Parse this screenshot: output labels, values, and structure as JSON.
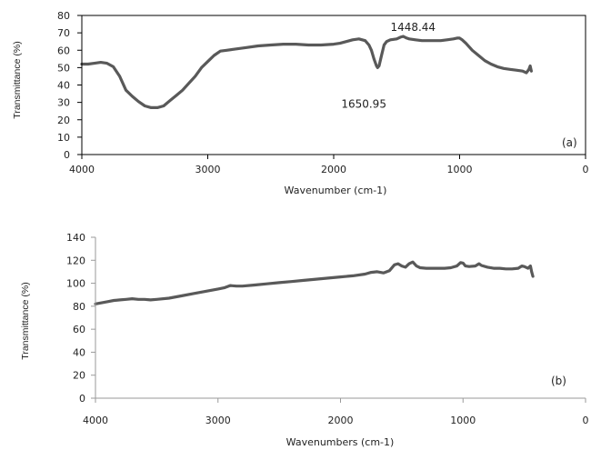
{
  "chart_data": [
    {
      "type": "line",
      "panel_label": "(a)",
      "xlabel": "Wavenumber (cm-1)",
      "ylabel": "Transmittance  (%)",
      "xlim": [
        4000,
        0
      ],
      "ylim": [
        0,
        80
      ],
      "xticks": [
        "4000",
        "3000",
        "2000",
        "1000",
        "0"
      ],
      "yticks": [
        "80",
        "70",
        "60",
        "50",
        "40",
        "30",
        "20",
        "10",
        "0"
      ],
      "grid": false,
      "color": "#595959",
      "series": [
        {
          "x": [
            4000,
            3950,
            3900,
            3850,
            3800,
            3750,
            3700,
            3650,
            3600,
            3550,
            3500,
            3450,
            3400,
            3350,
            3300,
            3250,
            3200,
            3150,
            3100,
            3050,
            3000,
            2950,
            2900,
            2850,
            2800,
            2700,
            2600,
            2500,
            2400,
            2300,
            2200,
            2100,
            2000,
            1950,
            1900,
            1850,
            1800,
            1750,
            1720,
            1700,
            1680,
            1660,
            1651,
            1640,
            1620,
            1600,
            1580,
            1550,
            1500,
            1470,
            1448,
            1420,
            1400,
            1350,
            1300,
            1250,
            1200,
            1150,
            1100,
            1050,
            1020,
            1000,
            980,
            950,
            900,
            850,
            800,
            750,
            700,
            650,
            600,
            550,
            500,
            470,
            450,
            440,
            430
          ],
          "y": [
            52,
            52,
            52.5,
            53,
            52.5,
            50.5,
            45,
            37,
            33.5,
            30.5,
            28,
            27,
            27,
            28,
            31,
            34,
            37,
            41,
            45,
            50,
            53.5,
            57,
            59.5,
            60,
            60.5,
            61.5,
            62.5,
            63,
            63.5,
            63.5,
            63,
            63,
            63.5,
            64,
            65,
            66,
            66.5,
            65.5,
            63,
            60,
            55,
            51,
            50,
            51,
            57,
            63,
            65,
            66,
            66.5,
            67.5,
            68,
            67,
            66.5,
            66,
            65.5,
            65.5,
            65.5,
            65.5,
            66,
            66.5,
            67,
            67,
            66,
            64,
            60,
            57,
            54,
            52,
            50.5,
            49.5,
            49,
            48.5,
            48,
            47,
            49,
            51,
            48
          ]
        }
      ],
      "annotations": [
        {
          "text": "1650.95",
          "x": 1651,
          "y": 50
        },
        {
          "text": "1448.44",
          "x": 1448,
          "y": 68
        }
      ]
    },
    {
      "type": "line",
      "panel_label": "(b)",
      "xlabel": "Wavenumbers (cm-1)",
      "ylabel": "Transmittance  (%)",
      "xlim": [
        4000,
        0
      ],
      "ylim": [
        0,
        140
      ],
      "xticks": [
        "4000",
        "3000",
        "2000",
        "1000",
        "0"
      ],
      "yticks": [
        "140",
        "120",
        "100",
        "80",
        "60",
        "40",
        "20",
        "0"
      ],
      "grid": false,
      "color": "#595959",
      "series": [
        {
          "x": [
            4000,
            3900,
            3850,
            3800,
            3750,
            3700,
            3650,
            3600,
            3550,
            3500,
            3400,
            3300,
            3200,
            3100,
            3000,
            2950,
            2900,
            2850,
            2800,
            2700,
            2600,
            2500,
            2400,
            2300,
            2200,
            2100,
            2000,
            1900,
            1800,
            1750,
            1700,
            1650,
            1600,
            1560,
            1530,
            1500,
            1470,
            1440,
            1410,
            1380,
            1350,
            1300,
            1250,
            1200,
            1150,
            1100,
            1050,
            1020,
            1000,
            980,
            950,
            900,
            870,
            850,
            800,
            750,
            700,
            650,
            600,
            550,
            520,
            500,
            470,
            450,
            440,
            430
          ],
          "y": [
            82,
            84,
            85,
            85.5,
            86,
            86.5,
            86,
            86,
            85.5,
            86,
            87,
            89,
            91,
            93,
            95,
            96,
            98,
            97.5,
            97.5,
            98.5,
            99.5,
            100.5,
            101.5,
            102.5,
            103.5,
            104.5,
            105.5,
            106.5,
            108,
            109.5,
            110,
            109,
            111,
            116,
            117,
            115,
            114,
            117,
            118.5,
            115,
            113.5,
            113,
            113,
            113,
            113,
            113.5,
            115,
            118,
            117.5,
            115,
            114.5,
            115,
            117,
            115.5,
            114,
            113,
            113,
            112.5,
            112.5,
            113,
            115,
            114.5,
            113,
            115,
            110,
            106
          ]
        }
      ],
      "annotations": []
    }
  ]
}
